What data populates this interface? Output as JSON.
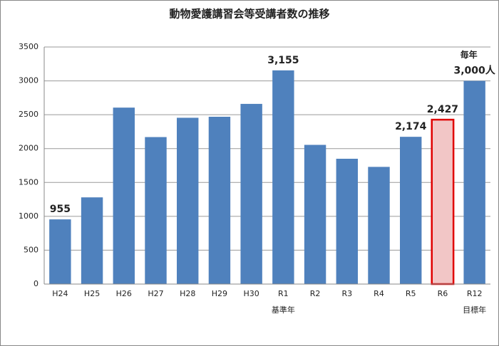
{
  "chart_data": {
    "type": "bar",
    "title": "動物愛護講習会等受講者数の推移",
    "categories": [
      "H24",
      "H25",
      "H26",
      "H27",
      "H28",
      "H29",
      "H30",
      "R1",
      "R2",
      "R3",
      "R4",
      "R5",
      "R6",
      "R12"
    ],
    "values": [
      955,
      1280,
      2605,
      2170,
      2455,
      2470,
      2660,
      3155,
      2055,
      1850,
      1730,
      2174,
      2427,
      3000
    ],
    "value_labels": [
      "955",
      null,
      null,
      null,
      null,
      null,
      null,
      "3,155",
      null,
      null,
      null,
      "2,174",
      "2,427",
      "3,000人"
    ],
    "color": "#4f81bd",
    "colors": [
      null,
      null,
      null,
      null,
      null,
      null,
      null,
      null,
      null,
      null,
      null,
      null,
      "#f2c6c6",
      null
    ],
    "edgecolors": [
      null,
      null,
      null,
      null,
      null,
      null,
      null,
      null,
      null,
      null,
      null,
      null,
      "#e00000",
      null
    ],
    "annotations": [
      {
        "text": "基準年",
        "category": "R1",
        "position": "below"
      },
      {
        "text": "目標年",
        "category": "R12",
        "position": "below"
      },
      {
        "text": "毎年",
        "category": "R12",
        "position": "above"
      }
    ],
    "ylim": [
      0,
      3500
    ],
    "yticks": [
      0,
      500,
      1000,
      1500,
      2000,
      2500,
      3000,
      3500
    ],
    "grid": true
  }
}
